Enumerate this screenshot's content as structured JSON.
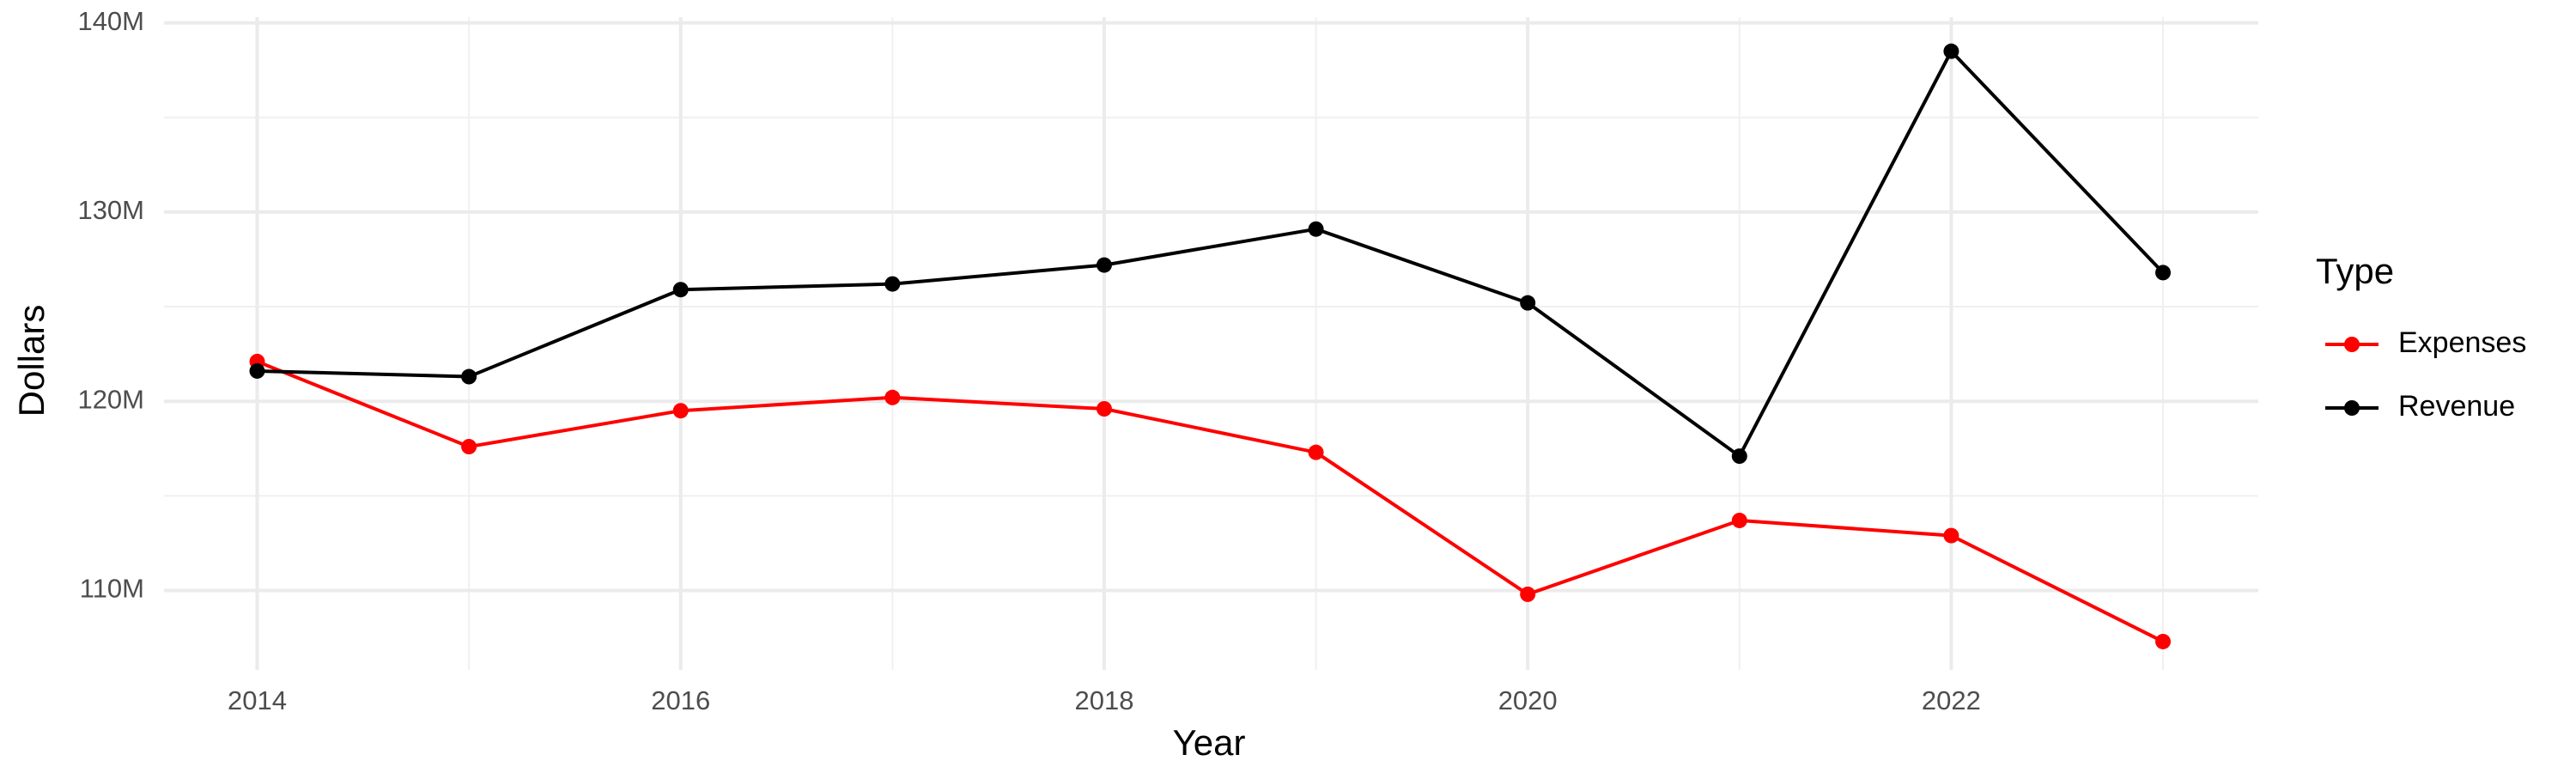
{
  "chart_data": {
    "type": "line",
    "x_label": "Year",
    "y_label": "Dollars",
    "legend_title": "Type",
    "x": [
      2014,
      2015,
      2016,
      2017,
      2018,
      2019,
      2020,
      2021,
      2022,
      2023
    ],
    "series": [
      {
        "name": "Expenses",
        "color": "#ff0000",
        "values": [
          122100000,
          117600000,
          119500000,
          120200000,
          119600000,
          117300000,
          109800000,
          113700000,
          112900000,
          107300000
        ]
      },
      {
        "name": "Revenue",
        "color": "#000000",
        "values": [
          121600000,
          121300000,
          125900000,
          126200000,
          127200000,
          129100000,
          125200000,
          117100000,
          138500000,
          126800000
        ]
      }
    ],
    "xlim": [
      2013.56,
      2023.45
    ],
    "xticks": [
      2014,
      2016,
      2018,
      2020,
      2022
    ],
    "ylim": [
      105800000,
      140300000
    ],
    "yticks": [
      {
        "value": 110000000,
        "label": "110M"
      },
      {
        "value": 120000000,
        "label": "120M"
      },
      {
        "value": 130000000,
        "label": "130M"
      },
      {
        "value": 140000000,
        "label": "140M"
      }
    ],
    "grid": true,
    "legend": "right"
  }
}
